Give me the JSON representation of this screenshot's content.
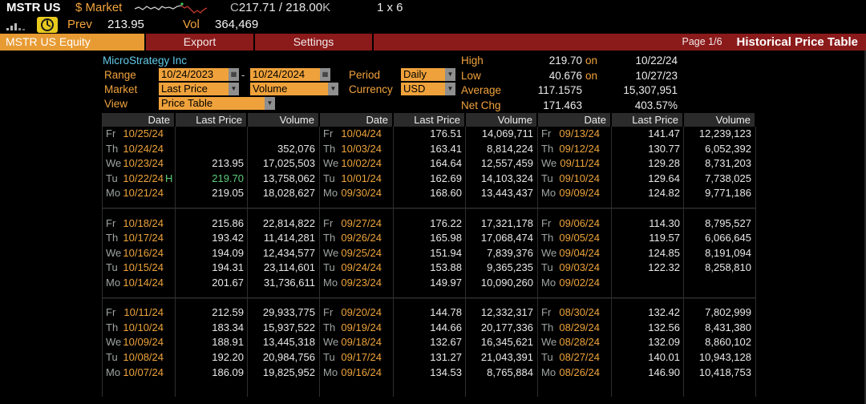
{
  "titlebar": {
    "ticker": "MSTR US",
    "market_label": "$ Market",
    "quote_prefix": "C",
    "quote_main": "217.71 / 218.00",
    "quote_suffix": "K",
    "lot": "1 x 6",
    "prev_label": "Prev",
    "prev_value": "213.95",
    "vol_label": "Vol",
    "vol_value": "364,469"
  },
  "menubar": {
    "security_tab": "MSTR US Equity",
    "export_label": "Export",
    "settings_label": "Settings",
    "page_label": "Page 1/6",
    "screen_title": "Historical Price Table"
  },
  "icons": {
    "dropdown": "▼",
    "calendar": "▦"
  },
  "panel": {
    "company": "MicroStrategy Inc",
    "range_label": "Range",
    "range_start": "10/24/2023",
    "range_separator": "-",
    "range_end": "10/24/2024",
    "period_label": "Period",
    "period_value": "Daily",
    "market_label": "Market",
    "market_field1": "Last Price",
    "market_field2": "Volume",
    "currency_label": "Currency",
    "currency_value": "USD",
    "view_label": "View",
    "view_value": "Price Table",
    "stats": [
      {
        "label": "High",
        "value": "219.70",
        "suffix": "on",
        "extra": "10/22/24"
      },
      {
        "label": "Low",
        "value": "40.676",
        "suffix": "on",
        "extra": "10/27/23"
      },
      {
        "label": "Average",
        "value": "117.1575",
        "suffix": "",
        "extra": "15,307,951"
      },
      {
        "label": "Net Chg",
        "value": "171.463",
        "suffix": "",
        "extra": "403.57%"
      }
    ]
  },
  "table": {
    "headers": [
      "Date",
      "Last Price",
      "Volume"
    ],
    "groups": [
      {
        "rows": [
          {
            "day": "Fr",
            "date": "10/25/24",
            "flag": "",
            "price": "",
            "volume": ""
          },
          {
            "day": "Th",
            "date": "10/24/24",
            "flag": "",
            "price": "",
            "volume": "352,076"
          },
          {
            "day": "We",
            "date": "10/23/24",
            "flag": "",
            "price": "213.95",
            "volume": "17,025,503"
          },
          {
            "day": "Tu",
            "date": "10/22/24",
            "flag": "H",
            "price": "219.70",
            "volume": "13,758,062",
            "hl": true
          },
          {
            "day": "Mo",
            "date": "10/21/24",
            "flag": "",
            "price": "219.05",
            "volume": "18,028,627"
          },
          {
            "day": "Fr",
            "date": "10/18/24",
            "flag": "",
            "price": "215.86",
            "volume": "22,814,822"
          },
          {
            "day": "Th",
            "date": "10/17/24",
            "flag": "",
            "price": "193.42",
            "volume": "11,414,281"
          },
          {
            "day": "We",
            "date": "10/16/24",
            "flag": "",
            "price": "194.09",
            "volume": "12,434,577"
          },
          {
            "day": "Tu",
            "date": "10/15/24",
            "flag": "",
            "price": "194.31",
            "volume": "23,114,601"
          },
          {
            "day": "Mo",
            "date": "10/14/24",
            "flag": "",
            "price": "201.67",
            "volume": "31,736,611"
          },
          {
            "day": "Fr",
            "date": "10/11/24",
            "flag": "",
            "price": "212.59",
            "volume": "29,933,775"
          },
          {
            "day": "Th",
            "date": "10/10/24",
            "flag": "",
            "price": "183.34",
            "volume": "15,937,522"
          },
          {
            "day": "We",
            "date": "10/09/24",
            "flag": "",
            "price": "188.91",
            "volume": "13,445,318"
          },
          {
            "day": "Tu",
            "date": "10/08/24",
            "flag": "",
            "price": "192.20",
            "volume": "20,984,756"
          },
          {
            "day": "Mo",
            "date": "10/07/24",
            "flag": "",
            "price": "186.09",
            "volume": "19,825,952"
          }
        ]
      },
      {
        "rows": [
          {
            "day": "Fr",
            "date": "10/04/24",
            "flag": "",
            "price": "176.51",
            "volume": "14,069,711"
          },
          {
            "day": "Th",
            "date": "10/03/24",
            "flag": "",
            "price": "163.41",
            "volume": "8,814,224"
          },
          {
            "day": "We",
            "date": "10/02/24",
            "flag": "",
            "price": "164.64",
            "volume": "12,557,459"
          },
          {
            "day": "Tu",
            "date": "10/01/24",
            "flag": "",
            "price": "162.69",
            "volume": "14,103,324"
          },
          {
            "day": "Mo",
            "date": "09/30/24",
            "flag": "",
            "price": "168.60",
            "volume": "13,443,437"
          },
          {
            "day": "Fr",
            "date": "09/27/24",
            "flag": "",
            "price": "176.22",
            "volume": "17,321,178"
          },
          {
            "day": "Th",
            "date": "09/26/24",
            "flag": "",
            "price": "165.98",
            "volume": "17,068,474"
          },
          {
            "day": "We",
            "date": "09/25/24",
            "flag": "",
            "price": "151.94",
            "volume": "7,839,376"
          },
          {
            "day": "Tu",
            "date": "09/24/24",
            "flag": "",
            "price": "153.88",
            "volume": "9,365,235"
          },
          {
            "day": "Mo",
            "date": "09/23/24",
            "flag": "",
            "price": "149.97",
            "volume": "10,090,260"
          },
          {
            "day": "Fr",
            "date": "09/20/24",
            "flag": "",
            "price": "144.78",
            "volume": "12,332,317"
          },
          {
            "day": "Th",
            "date": "09/19/24",
            "flag": "",
            "price": "144.66",
            "volume": "20,177,336"
          },
          {
            "day": "We",
            "date": "09/18/24",
            "flag": "",
            "price": "132.67",
            "volume": "16,345,621"
          },
          {
            "day": "Tu",
            "date": "09/17/24",
            "flag": "",
            "price": "131.27",
            "volume": "21,043,391"
          },
          {
            "day": "Mo",
            "date": "09/16/24",
            "flag": "",
            "price": "134.53",
            "volume": "8,765,884"
          }
        ]
      },
      {
        "rows": [
          {
            "day": "Fr",
            "date": "09/13/24",
            "flag": "",
            "price": "141.47",
            "volume": "12,239,123"
          },
          {
            "day": "Th",
            "date": "09/12/24",
            "flag": "",
            "price": "130.77",
            "volume": "6,052,392"
          },
          {
            "day": "We",
            "date": "09/11/24",
            "flag": "",
            "price": "129.28",
            "volume": "8,731,203"
          },
          {
            "day": "Tu",
            "date": "09/10/24",
            "flag": "",
            "price": "129.64",
            "volume": "7,738,025"
          },
          {
            "day": "Mo",
            "date": "09/09/24",
            "flag": "",
            "price": "124.82",
            "volume": "9,771,186"
          },
          {
            "day": "Fr",
            "date": "09/06/24",
            "flag": "",
            "price": "114.30",
            "volume": "8,795,527"
          },
          {
            "day": "Th",
            "date": "09/05/24",
            "flag": "",
            "price": "119.57",
            "volume": "6,066,645"
          },
          {
            "day": "We",
            "date": "09/04/24",
            "flag": "",
            "price": "124.85",
            "volume": "8,191,094"
          },
          {
            "day": "Tu",
            "date": "09/03/24",
            "flag": "",
            "price": "122.32",
            "volume": "8,258,810"
          },
          {
            "day": "Mo",
            "date": "09/02/24",
            "flag": "",
            "price": "",
            "volume": ""
          },
          {
            "day": "Fr",
            "date": "08/30/24",
            "flag": "",
            "price": "132.42",
            "volume": "7,802,999"
          },
          {
            "day": "Th",
            "date": "08/29/24",
            "flag": "",
            "price": "132.56",
            "volume": "8,431,380"
          },
          {
            "day": "We",
            "date": "08/28/24",
            "flag": "",
            "price": "132.09",
            "volume": "8,860,102"
          },
          {
            "day": "Tu",
            "date": "08/27/24",
            "flag": "",
            "price": "140.01",
            "volume": "10,943,128"
          },
          {
            "day": "Mo",
            "date": "08/26/24",
            "flag": "",
            "price": "146.90",
            "volume": "10,418,753"
          }
        ]
      }
    ]
  },
  "colors": {
    "amber": "#f2a33c",
    "field_amber": "#efa23b",
    "menu_red": "#8b1a1a",
    "highlight_green": "#5ece7b",
    "company_cyan": "#62c9e8",
    "header_gray": "#2b2b2b",
    "gauge_yellow": "#e8c91d"
  }
}
